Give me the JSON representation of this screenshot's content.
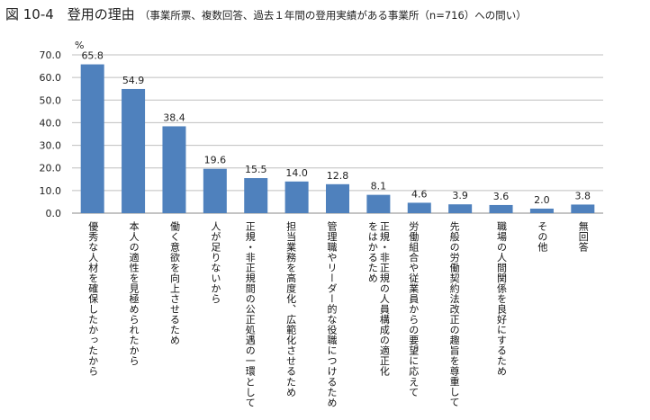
{
  "title": {
    "main": "図 10-4　登用の理由",
    "sub": "（事業所票、複数回答、過去１年間の登用実績がある事業所（n=716）への問い）"
  },
  "chart_data": {
    "type": "bar",
    "unit_label": "%",
    "ylim": [
      0,
      70
    ],
    "yticks": [
      "0.0",
      "10.0",
      "20.0",
      "30.0",
      "40.0",
      "50.0",
      "60.0",
      "70.0"
    ],
    "grid": true,
    "bar_color": "#4f81bd",
    "categories": [
      [
        "優秀な人材を確保したかったから"
      ],
      [
        "本人の適性を見極められたから"
      ],
      [
        "働く意欲を向上させるため"
      ],
      [
        "人が足りないから"
      ],
      [
        "正規・非正規間の公正処遇の一環",
        "として"
      ],
      [
        "担当業務を高度化、広範化させる",
        "ため"
      ],
      [
        "管理職やリーダー的な役職につけ",
        "るため"
      ],
      [
        "正規・非正規の人員構成の適正化",
        "をはかるため"
      ],
      [
        "労働組合や従業員からの要望に応",
        "えて"
      ],
      [
        "先般の労働契約法改正の趣旨を",
        "尊重して"
      ],
      [
        "職場の人間関係を良好にするため"
      ],
      [
        "その他"
      ],
      [
        "無回答"
      ]
    ],
    "values": [
      65.8,
      54.9,
      38.4,
      19.6,
      15.5,
      14.0,
      12.8,
      8.1,
      4.6,
      3.9,
      3.6,
      2.0,
      3.8
    ],
    "value_labels": [
      "65.8",
      "54.9",
      "38.4",
      "19.6",
      "15.5",
      "14.0",
      "12.8",
      "8.1",
      "4.6",
      "3.9",
      "3.6",
      "2.0",
      "3.8"
    ]
  }
}
